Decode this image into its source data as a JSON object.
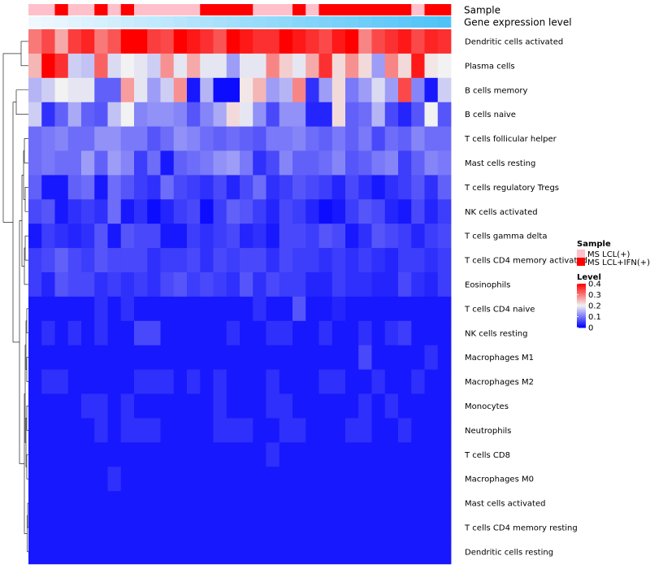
{
  "chart_data": {
    "type": "heatmap",
    "annotation_labels": [
      "Sample",
      "Gene expression level"
    ],
    "row_labels": [
      "Dendritic cells activated",
      "Plasma cells",
      "B cells memory",
      "B cells naive",
      "T cells follicular helper",
      "Mast cells resting",
      "T cells regulatory  Tregs",
      "NK cells activated",
      "T cells gamma delta",
      "T cells CD4 memory activated",
      "Eosinophils",
      "T cells CD4 naive",
      "NK cells resting",
      "Macrophages M1",
      "Macrophages M2",
      "Monocytes",
      "Neutrophils",
      "T cells CD8",
      "Macrophages M0",
      "Mast cells activated",
      "T cells CD4 memory resting",
      "Dendritic cells resting"
    ],
    "sample_groups": [
      "MS LCL(+)",
      "MS LCL(+)",
      "MS LCL+IFN(+)",
      "MS LCL(+)",
      "MS LCL(+)",
      "MS LCL+IFN(+)",
      "MS LCL(+)",
      "MS LCL+IFN(+)",
      "MS LCL(+)",
      "MS LCL(+)",
      "MS LCL(+)",
      "MS LCL(+)",
      "MS LCL(+)",
      "MS LCL+IFN(+)",
      "MS LCL+IFN(+)",
      "MS LCL+IFN(+)",
      "MS LCL+IFN(+)",
      "MS LCL(+)",
      "MS LCL(+)",
      "MS LCL(+)",
      "MS LCL+IFN(+)",
      "MS LCL(+)",
      "MS LCL+IFN(+)",
      "MS LCL+IFN(+)",
      "MS LCL+IFN(+)",
      "MS LCL+IFN(+)",
      "MS LCL+IFN(+)",
      "MS LCL+IFN(+)",
      "MS LCL+IFN(+)",
      "MS LCL(+)",
      "MS LCL+IFN(+)",
      "MS LCL+IFN(+)"
    ],
    "gene_expression_level_scale": [
      0.0,
      0.03,
      0.06,
      0.1,
      0.13,
      0.16,
      0.19,
      0.23,
      0.26,
      0.29,
      0.32,
      0.35,
      0.39,
      0.42,
      0.45,
      0.48,
      0.52,
      0.55,
      0.58,
      0.61,
      0.65,
      0.68,
      0.71,
      0.74,
      0.77,
      0.81,
      0.84,
      0.87,
      0.9,
      0.94,
      0.97,
      1.0
    ],
    "values": [
      [
        0.3,
        0.34,
        0.26,
        0.35,
        0.37,
        0.3,
        0.33,
        0.4,
        0.4,
        0.35,
        0.34,
        0.4,
        0.38,
        0.36,
        0.33,
        0.4,
        0.38,
        0.36,
        0.36,
        0.4,
        0.38,
        0.36,
        0.34,
        0.38,
        0.4,
        0.29,
        0.34,
        0.36,
        0.38,
        0.34,
        0.37,
        0.36
      ],
      [
        0.25,
        0.4,
        0.36,
        0.17,
        0.16,
        0.32,
        0.18,
        0.2,
        0.19,
        0.17,
        0.28,
        0.19,
        0.26,
        0.19,
        0.19,
        0.13,
        0.19,
        0.19,
        0.29,
        0.23,
        0.19,
        0.26,
        0.36,
        0.22,
        0.28,
        0.22,
        0.13,
        0.29,
        0.22,
        0.38,
        0.21,
        0.2
      ],
      [
        0.15,
        0.17,
        0.2,
        0.19,
        0.19,
        0.08,
        0.08,
        0.27,
        0.19,
        0.13,
        0.17,
        0.28,
        0.02,
        0.15,
        0.01,
        0.01,
        0.21,
        0.25,
        0.13,
        0.15,
        0.29,
        0.04,
        0.13,
        0.22,
        0.1,
        0.13,
        0.18,
        0.13,
        0.34,
        0.11,
        0.02,
        0.17
      ],
      [
        0.17,
        0.04,
        0.08,
        0.14,
        0.08,
        0.07,
        0.16,
        0.2,
        0.11,
        0.12,
        0.12,
        0.11,
        0.07,
        0.11,
        0.14,
        0.22,
        0.19,
        0.12,
        0.06,
        0.12,
        0.12,
        0.03,
        0.03,
        0.22,
        0.08,
        0.09,
        0.15,
        0.06,
        0.03,
        0.07,
        0.2,
        0.07
      ],
      [
        0.09,
        0.1,
        0.11,
        0.09,
        0.09,
        0.12,
        0.12,
        0.1,
        0.1,
        0.07,
        0.09,
        0.12,
        0.11,
        0.09,
        0.08,
        0.09,
        0.08,
        0.07,
        0.1,
        0.1,
        0.11,
        0.09,
        0.08,
        0.1,
        0.08,
        0.1,
        0.06,
        0.09,
        0.08,
        0.11,
        0.09,
        0.09
      ],
      [
        0.09,
        0.1,
        0.09,
        0.09,
        0.13,
        0.08,
        0.13,
        0.11,
        0.05,
        0.09,
        0.02,
        0.08,
        0.09,
        0.1,
        0.12,
        0.13,
        0.1,
        0.04,
        0.06,
        0.11,
        0.08,
        0.08,
        0.09,
        0.11,
        0.07,
        0.08,
        0.1,
        0.11,
        0.05,
        0.08,
        0.11,
        0.1
      ],
      [
        0.08,
        0.02,
        0.02,
        0.08,
        0.09,
        0.02,
        0.09,
        0.07,
        0.05,
        0.04,
        0.09,
        0.06,
        0.05,
        0.04,
        0.06,
        0.03,
        0.06,
        0.09,
        0.04,
        0.05,
        0.07,
        0.06,
        0.05,
        0.03,
        0.06,
        0.04,
        0.02,
        0.04,
        0.05,
        0.07,
        0.04,
        0.08
      ],
      [
        0.06,
        0.07,
        0.02,
        0.04,
        0.05,
        0.04,
        0.09,
        0.02,
        0.04,
        0.01,
        0.03,
        0.05,
        0.06,
        0.01,
        0.05,
        0.08,
        0.07,
        0.05,
        0.03,
        0.06,
        0.05,
        0.03,
        0.01,
        0.02,
        0.05,
        0.07,
        0.06,
        0.03,
        0.02,
        0.06,
        0.03,
        0.05
      ],
      [
        0.02,
        0.05,
        0.04,
        0.03,
        0.04,
        0.07,
        0.02,
        0.07,
        0.06,
        0.06,
        0.02,
        0.02,
        0.05,
        0.04,
        0.05,
        0.06,
        0.03,
        0.04,
        0.02,
        0.06,
        0.06,
        0.05,
        0.07,
        0.06,
        0.02,
        0.04,
        0.07,
        0.06,
        0.05,
        0.03,
        0.05,
        0.06
      ],
      [
        0.05,
        0.06,
        0.08,
        0.06,
        0.05,
        0.07,
        0.06,
        0.06,
        0.06,
        0.04,
        0.05,
        0.05,
        0.06,
        0.04,
        0.06,
        0.05,
        0.06,
        0.06,
        0.04,
        0.06,
        0.05,
        0.05,
        0.04,
        0.05,
        0.04,
        0.05,
        0.04,
        0.03,
        0.05,
        0.05,
        0.04,
        0.05
      ],
      [
        0.05,
        0.03,
        0.07,
        0.06,
        0.06,
        0.04,
        0.05,
        0.04,
        0.05,
        0.04,
        0.06,
        0.07,
        0.05,
        0.06,
        0.05,
        0.04,
        0.07,
        0.04,
        0.06,
        0.05,
        0.05,
        0.03,
        0.03,
        0.05,
        0.04,
        0.04,
        0.03,
        0.03,
        0.06,
        0.04,
        0.03,
        0.05
      ],
      [
        0.02,
        0.02,
        0.02,
        0.02,
        0.02,
        0.04,
        0.02,
        0.04,
        0.02,
        0.02,
        0.02,
        0.02,
        0.02,
        0.02,
        0.02,
        0.02,
        0.02,
        0.04,
        0.02,
        0.02,
        0.07,
        0.02,
        0.02,
        0.03,
        0.02,
        0.02,
        0.02,
        0.02,
        0.02,
        0.02,
        0.02,
        0.02
      ],
      [
        0.02,
        0.04,
        0.02,
        0.04,
        0.02,
        0.04,
        0.02,
        0.02,
        0.06,
        0.06,
        0.02,
        0.02,
        0.02,
        0.02,
        0.02,
        0.04,
        0.02,
        0.02,
        0.04,
        0.04,
        0.02,
        0.02,
        0.04,
        0.02,
        0.02,
        0.04,
        0.02,
        0.04,
        0.05,
        0.02,
        0.02,
        0.02
      ],
      [
        0.02,
        0.02,
        0.02,
        0.02,
        0.02,
        0.02,
        0.02,
        0.02,
        0.02,
        0.02,
        0.02,
        0.02,
        0.02,
        0.02,
        0.02,
        0.02,
        0.02,
        0.02,
        0.02,
        0.02,
        0.02,
        0.02,
        0.02,
        0.02,
        0.02,
        0.06,
        0.02,
        0.02,
        0.02,
        0.02,
        0.04,
        0.02
      ],
      [
        0.02,
        0.04,
        0.04,
        0.02,
        0.02,
        0.02,
        0.02,
        0.02,
        0.04,
        0.04,
        0.04,
        0.02,
        0.04,
        0.02,
        0.04,
        0.02,
        0.02,
        0.02,
        0.04,
        0.02,
        0.02,
        0.02,
        0.04,
        0.04,
        0.02,
        0.02,
        0.04,
        0.02,
        0.02,
        0.04,
        0.02,
        0.02
      ],
      [
        0.02,
        0.02,
        0.02,
        0.02,
        0.04,
        0.04,
        0.02,
        0.04,
        0.02,
        0.02,
        0.02,
        0.02,
        0.02,
        0.02,
        0.04,
        0.02,
        0.02,
        0.02,
        0.04,
        0.04,
        0.02,
        0.02,
        0.02,
        0.02,
        0.02,
        0.04,
        0.02,
        0.04,
        0.02,
        0.02,
        0.02,
        0.02
      ],
      [
        0.02,
        0.02,
        0.02,
        0.02,
        0.02,
        0.04,
        0.02,
        0.04,
        0.04,
        0.04,
        0.02,
        0.02,
        0.02,
        0.02,
        0.04,
        0.04,
        0.04,
        0.02,
        0.02,
        0.04,
        0.04,
        0.02,
        0.02,
        0.02,
        0.04,
        0.04,
        0.02,
        0.02,
        0.04,
        0.02,
        0.02,
        0.02
      ],
      [
        0.02,
        0.02,
        0.02,
        0.02,
        0.02,
        0.02,
        0.02,
        0.02,
        0.02,
        0.02,
        0.02,
        0.02,
        0.02,
        0.02,
        0.02,
        0.02,
        0.02,
        0.02,
        0.04,
        0.02,
        0.02,
        0.02,
        0.02,
        0.02,
        0.02,
        0.02,
        0.02,
        0.02,
        0.02,
        0.02,
        0.02,
        0.02
      ],
      [
        0.02,
        0.02,
        0.02,
        0.02,
        0.02,
        0.02,
        0.04,
        0.02,
        0.02,
        0.02,
        0.02,
        0.02,
        0.02,
        0.02,
        0.02,
        0.02,
        0.02,
        0.02,
        0.02,
        0.02,
        0.02,
        0.02,
        0.02,
        0.02,
        0.02,
        0.02,
        0.02,
        0.02,
        0.02,
        0.02,
        0.02,
        0.02
      ],
      [
        0.02,
        0.02,
        0.02,
        0.02,
        0.02,
        0.02,
        0.02,
        0.02,
        0.02,
        0.02,
        0.02,
        0.02,
        0.02,
        0.02,
        0.02,
        0.02,
        0.02,
        0.02,
        0.02,
        0.02,
        0.02,
        0.02,
        0.02,
        0.02,
        0.02,
        0.02,
        0.02,
        0.02,
        0.02,
        0.02,
        0.02,
        0.02
      ],
      [
        0.02,
        0.02,
        0.02,
        0.02,
        0.02,
        0.02,
        0.02,
        0.02,
        0.02,
        0.02,
        0.02,
        0.02,
        0.02,
        0.02,
        0.02,
        0.02,
        0.02,
        0.02,
        0.02,
        0.02,
        0.02,
        0.02,
        0.02,
        0.02,
        0.02,
        0.02,
        0.02,
        0.02,
        0.02,
        0.02,
        0.02,
        0.02
      ],
      [
        0.02,
        0.02,
        0.02,
        0.02,
        0.02,
        0.02,
        0.02,
        0.02,
        0.02,
        0.02,
        0.02,
        0.02,
        0.02,
        0.02,
        0.02,
        0.02,
        0.02,
        0.02,
        0.02,
        0.02,
        0.02,
        0.02,
        0.02,
        0.02,
        0.02,
        0.02,
        0.02,
        0.02,
        0.02,
        0.02,
        0.02,
        0.02
      ]
    ],
    "color_range": [
      0,
      0.4
    ],
    "color_scale": {
      "low": "#0000FF",
      "mid": "#F2F2F2",
      "high": "#FF0000",
      "mid_value": 0.2
    },
    "legends": {
      "sample": {
        "title": "Sample",
        "entries": [
          {
            "label": "MS LCL(+)",
            "color": "#FFC0CB"
          },
          {
            "label": "MS LCL+IFN(+)",
            "color": "#FF0000"
          }
        ]
      },
      "level": {
        "title": "Level",
        "ticks": [
          {
            "value": 0.4,
            "label": "0.4"
          },
          {
            "value": 0.3,
            "label": "0.3"
          },
          {
            "value": 0.2,
            "label": "0.2"
          },
          {
            "value": 0.1,
            "label": "0.1"
          },
          {
            "value": 0,
            "label": "0"
          }
        ]
      }
    },
    "annotation_colors": {
      "gene_low": "#F0F8FF",
      "gene_high": "#4FC3F7",
      "dendrogram": "#000000"
    }
  }
}
